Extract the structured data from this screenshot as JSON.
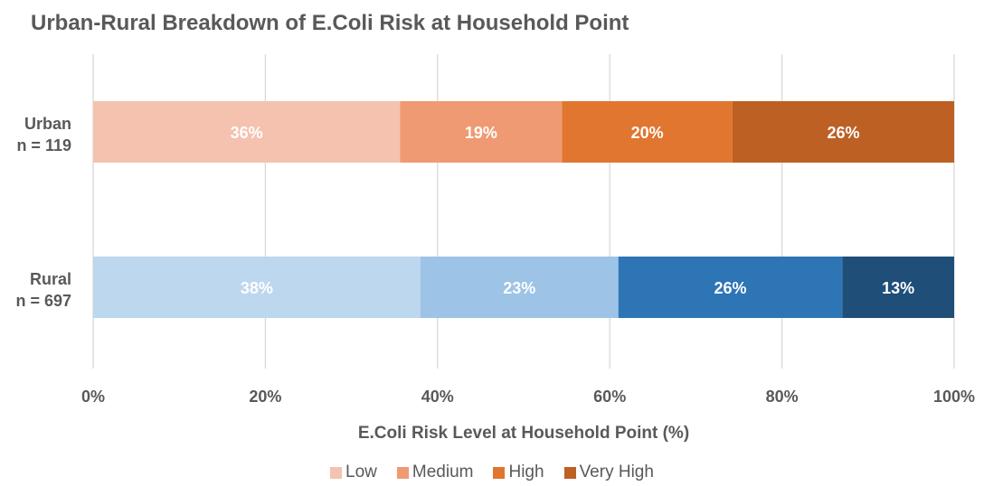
{
  "chart_data": {
    "type": "bar",
    "orientation": "horizontal",
    "stacked": true,
    "title": "Urban-Rural Breakdown of E.Coli Risk at Household Point",
    "xlabel": "E.Coli Risk Level at Household Point (%)",
    "ylabel": "",
    "xlim": [
      0,
      100
    ],
    "x_ticks": [
      "0%",
      "20%",
      "40%",
      "60%",
      "80%",
      "100%"
    ],
    "grid": true,
    "legend_position": "bottom",
    "legend": [
      {
        "label": "Low",
        "color": "#f4c2ae"
      },
      {
        "label": "Medium",
        "color": "#ef9a72"
      },
      {
        "label": "High",
        "color": "#e07630"
      },
      {
        "label": "Very High",
        "color": "#bd6024"
      }
    ],
    "categories": [
      {
        "line1": "Urban",
        "line2": "n = 119",
        "segments": [
          {
            "series": "Low",
            "value": 36,
            "label": "36%",
            "color": "#f4c2ae"
          },
          {
            "series": "Medium",
            "value": 19,
            "label": "19%",
            "color": "#ef9a72"
          },
          {
            "series": "High",
            "value": 20,
            "label": "20%",
            "color": "#e07630"
          },
          {
            "series": "Very High",
            "value": 26,
            "label": "26%",
            "color": "#bd6024"
          }
        ]
      },
      {
        "line1": "Rural",
        "line2": "n = 697",
        "segments": [
          {
            "series": "Low",
            "value": 38,
            "label": "38%",
            "color": "#bdd7ee"
          },
          {
            "series": "Medium",
            "value": 23,
            "label": "23%",
            "color": "#9dc3e6"
          },
          {
            "series": "High",
            "value": 26,
            "label": "26%",
            "color": "#2e75b6"
          },
          {
            "series": "Very High",
            "value": 13,
            "label": "13%",
            "color": "#1f4e79"
          }
        ]
      }
    ]
  }
}
